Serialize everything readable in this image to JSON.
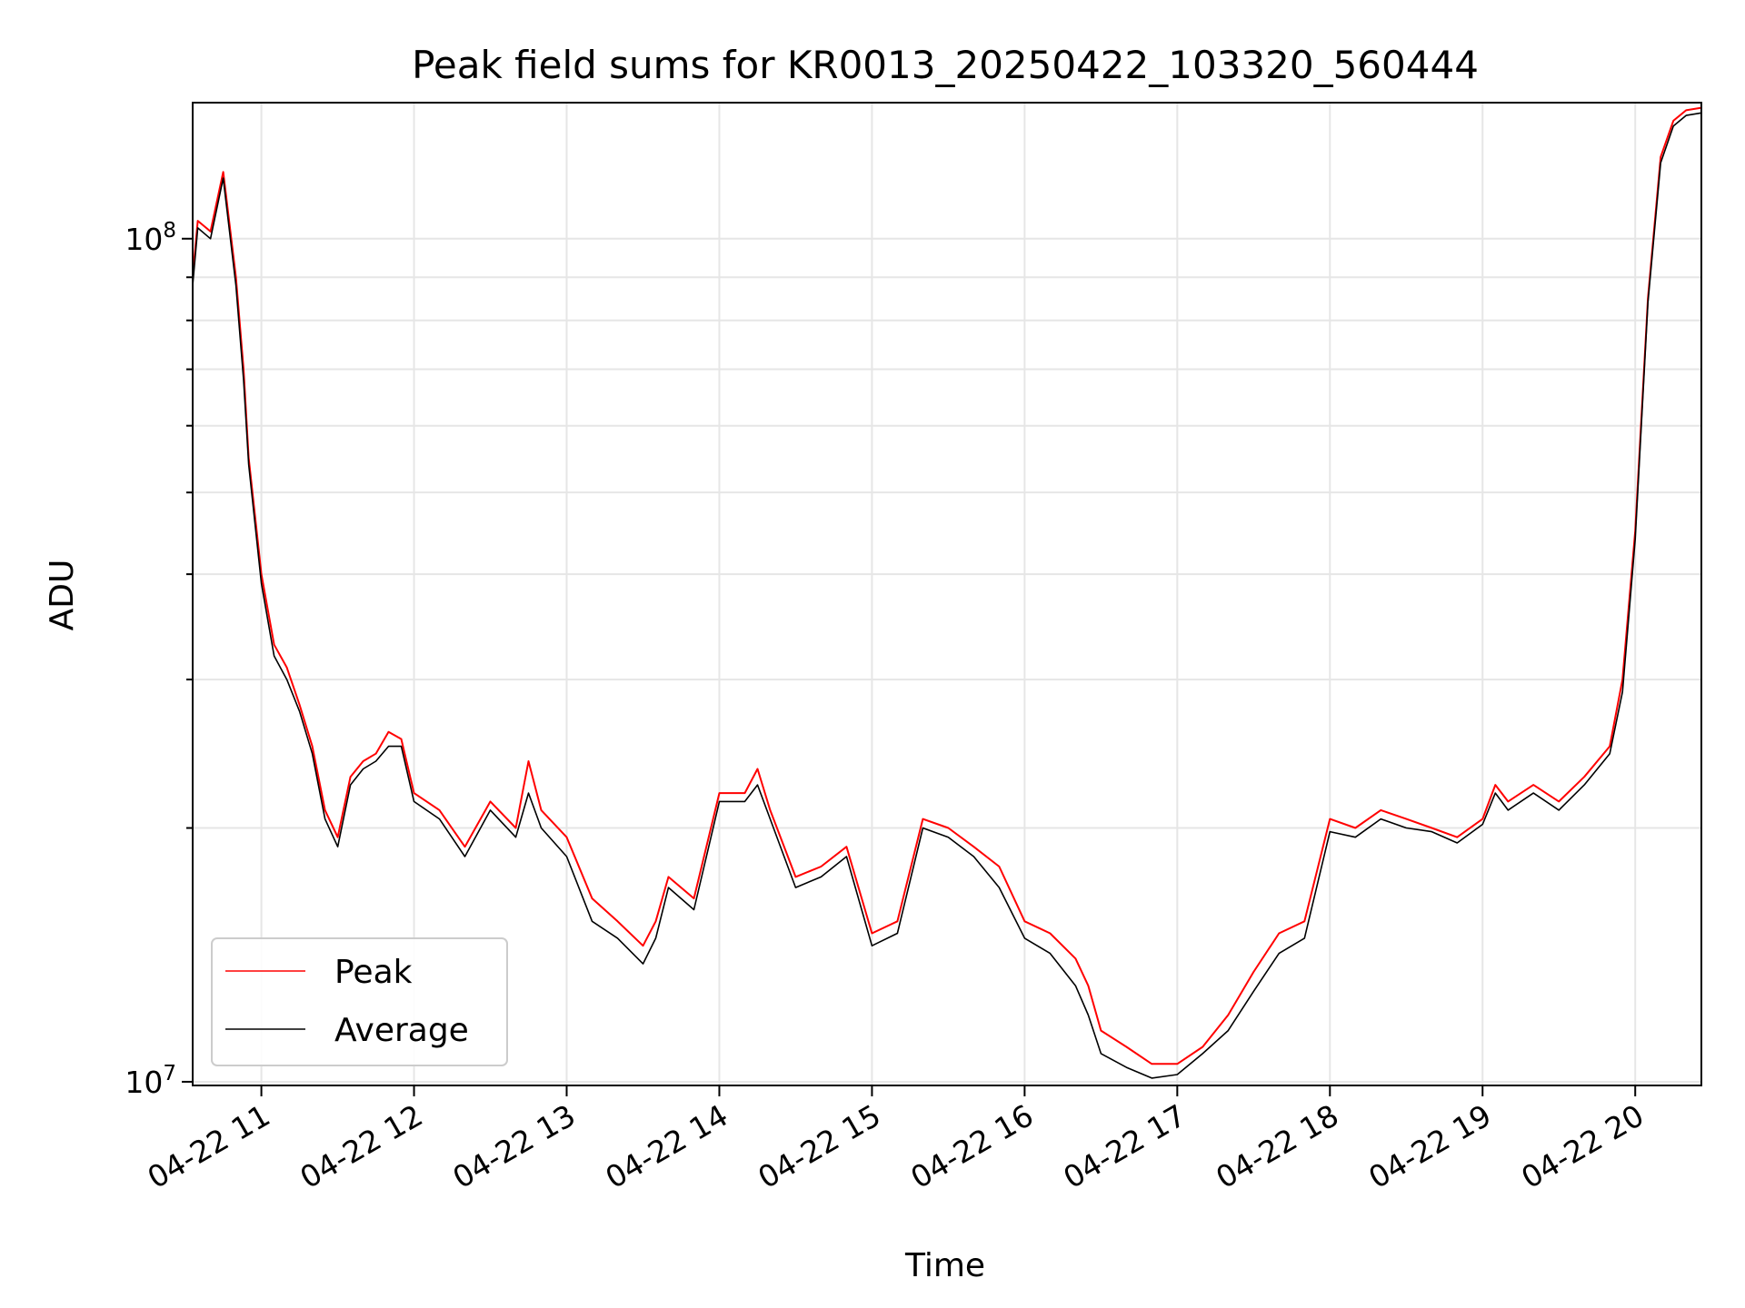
{
  "chart_data": {
    "type": "line",
    "title": "Peak field sums for KR0013_20250422_103320_560444",
    "xlabel": "Time",
    "ylabel": "ADU",
    "y_scale": "log",
    "ylim": [
      9900000,
      145000000
    ],
    "xlim": [
      "04-22 10:33",
      "04-22 20:26"
    ],
    "x_ticks": [
      "04-22 11",
      "04-22 12",
      "04-22 13",
      "04-22 14",
      "04-22 15",
      "04-22 16",
      "04-22 17",
      "04-22 18",
      "04-22 19",
      "04-22 20"
    ],
    "y_ticks": [
      {
        "base": "10",
        "exp": "7"
      },
      {
        "base": "10",
        "exp": "8"
      }
    ],
    "grid": true,
    "legend_position": "lower-left",
    "colors": {
      "peak": "#ff0000",
      "average": "#000000"
    },
    "x": [
      "04-22 10:33",
      "04-22 10:35",
      "04-22 10:40",
      "04-22 10:45",
      "04-22 10:50",
      "04-22 10:53",
      "04-22 10:55",
      "04-22 11:00",
      "04-22 11:05",
      "04-22 11:10",
      "04-22 11:15",
      "04-22 11:20",
      "04-22 11:25",
      "04-22 11:30",
      "04-22 11:35",
      "04-22 11:40",
      "04-22 11:45",
      "04-22 11:50",
      "04-22 11:55",
      "04-22 12:00",
      "04-22 12:10",
      "04-22 12:20",
      "04-22 12:30",
      "04-22 12:40",
      "04-22 12:45",
      "04-22 12:50",
      "04-22 13:00",
      "04-22 13:10",
      "04-22 13:20",
      "04-22 13:30",
      "04-22 13:35",
      "04-22 13:40",
      "04-22 13:50",
      "04-22 14:00",
      "04-22 14:10",
      "04-22 14:15",
      "04-22 14:20",
      "04-22 14:30",
      "04-22 14:40",
      "04-22 14:50",
      "04-22 15:00",
      "04-22 15:10",
      "04-22 15:20",
      "04-22 15:30",
      "04-22 15:40",
      "04-22 15:50",
      "04-22 16:00",
      "04-22 16:10",
      "04-22 16:20",
      "04-22 16:25",
      "04-22 16:30",
      "04-22 16:40",
      "04-22 16:50",
      "04-22 17:00",
      "04-22 17:10",
      "04-22 17:20",
      "04-22 17:30",
      "04-22 17:40",
      "04-22 17:50",
      "04-22 18:00",
      "04-22 18:10",
      "04-22 18:20",
      "04-22 18:30",
      "04-22 18:40",
      "04-22 18:50",
      "04-22 19:00",
      "04-22 19:05",
      "04-22 19:10",
      "04-22 19:20",
      "04-22 19:30",
      "04-22 19:40",
      "04-22 19:50",
      "04-22 19:55",
      "04-22 20:00",
      "04-22 20:05",
      "04-22 20:10",
      "04-22 20:15",
      "04-22 20:20",
      "04-22 20:26"
    ],
    "series": [
      {
        "name": "Peak",
        "values": [
          90000000,
          105000000,
          102000000,
          120000000,
          90000000,
          70000000,
          55000000,
          40000000,
          33000000,
          31000000,
          28000000,
          25000000,
          21000000,
          19500000,
          23000000,
          24000000,
          24500000,
          26000000,
          25500000,
          22000000,
          21000000,
          19000000,
          21500000,
          20000000,
          24000000,
          21000000,
          19500000,
          16500000,
          15500000,
          14500000,
          15500000,
          17500000,
          16500000,
          22000000,
          22000000,
          23500000,
          21000000,
          17500000,
          18000000,
          19000000,
          15000000,
          15500000,
          20500000,
          20000000,
          19000000,
          18000000,
          15500000,
          15000000,
          14000000,
          13000000,
          11500000,
          11000000,
          10500000,
          10500000,
          11000000,
          12000000,
          13500000,
          15000000,
          15500000,
          20500000,
          20000000,
          21000000,
          20500000,
          20000000,
          19500000,
          20500000,
          22500000,
          21500000,
          22500000,
          21500000,
          23000000,
          25000000,
          30000000,
          45000000,
          85000000,
          125000000,
          138000000,
          142000000,
          143000000
        ]
      },
      {
        "name": "Average",
        "values": [
          88000000,
          103000000,
          100000000,
          118000000,
          88000000,
          68000000,
          54000000,
          39000000,
          32000000,
          30000000,
          27500000,
          24500000,
          20500000,
          19000000,
          22500000,
          23500000,
          24000000,
          25000000,
          25000000,
          21500000,
          20500000,
          18500000,
          21000000,
          19500000,
          22000000,
          20000000,
          18500000,
          15500000,
          14800000,
          13800000,
          14800000,
          17000000,
          16000000,
          21500000,
          21500000,
          22500000,
          20500000,
          17000000,
          17500000,
          18500000,
          14500000,
          15000000,
          20000000,
          19500000,
          18500000,
          17000000,
          14800000,
          14200000,
          13000000,
          12000000,
          10800000,
          10400000,
          10100000,
          10200000,
          10800000,
          11500000,
          12800000,
          14200000,
          14800000,
          19800000,
          19500000,
          20500000,
          20000000,
          19800000,
          19200000,
          20200000,
          22000000,
          21000000,
          22000000,
          21000000,
          22500000,
          24500000,
          29000000,
          44000000,
          84000000,
          123000000,
          136000000,
          140000000,
          141000000
        ]
      }
    ]
  }
}
